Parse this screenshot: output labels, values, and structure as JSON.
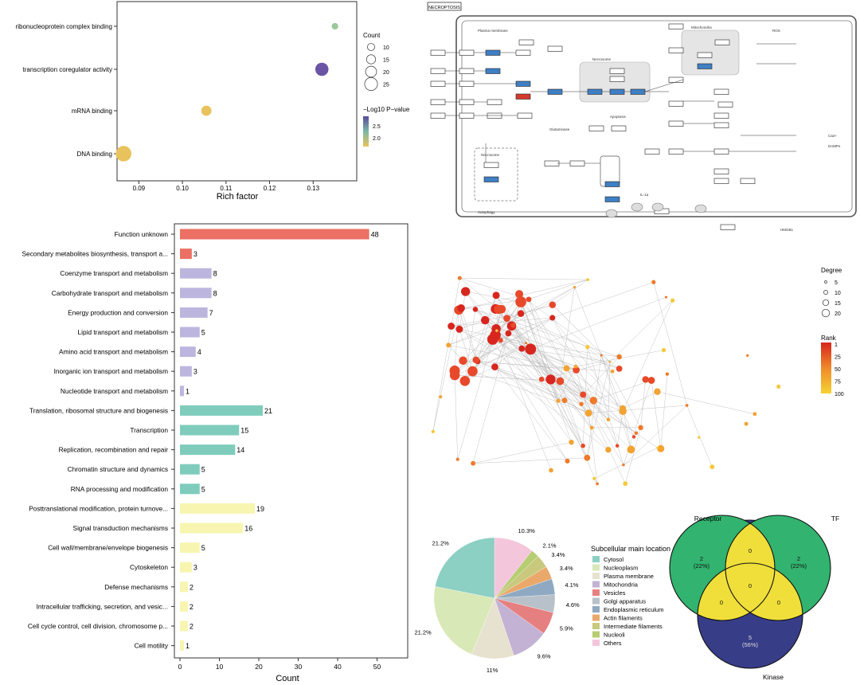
{
  "colors": {
    "red": "#ec7064",
    "lavender": "#bcb6df",
    "teal": "#7fccbd",
    "yellow": "#f8f5b0",
    "venn_green": "#32b36f",
    "venn_yellow": "#f0df3a",
    "venn_navy": "#373d87",
    "kegg_blue": "#3f7fc4",
    "kegg_red": "#d23b2c"
  },
  "dot_plot": {
    "chart_data": {
      "type": "scatter",
      "title": "",
      "xlabel": "Rich factor",
      "ylabel": "",
      "xlim": [
        0.085,
        0.14
      ],
      "xticks": [
        0.09,
        0.1,
        0.11,
        0.12,
        0.13
      ],
      "xtick_labels": [
        "0.09",
        "0.10",
        "0.11",
        "0.12",
        "0.13"
      ],
      "categories": [
        "ribonucleoprotein complex binding",
        "transcription coregulator activity",
        "mRNA binding",
        "DNA binding"
      ],
      "rich_factor": [
        0.135,
        0.132,
        0.1055,
        0.0865
      ],
      "count": [
        5,
        16,
        11,
        20
      ],
      "neg_log10_p": [
        2.3,
        3.0,
        2.0,
        2.0
      ],
      "point_colors": [
        "#99c99a",
        "#6b54a4",
        "#e8c25c",
        "#e8c25c"
      ],
      "legend_count_title": "Count",
      "legend_count_values": [
        "10",
        "15",
        "20",
        "25"
      ],
      "legend_color_title": "−Log10 P−value",
      "legend_color_ticks": [
        "2.5",
        "2.0"
      ]
    }
  },
  "bar_chart": {
    "chart_data": {
      "type": "bar",
      "orientation": "horizontal",
      "xlabel": "Count",
      "xlim": [
        0,
        55
      ],
      "xticks": [
        0,
        10,
        20,
        30,
        40,
        50
      ],
      "xtick_labels": [
        "0",
        "10",
        "20",
        "30",
        "40",
        "50"
      ],
      "categories": [
        "Function unknown",
        "Secondary metabolites biosynthesis, transport a...",
        "Coenzyme transport and metabolism",
        "Carbohydrate transport and metabolism",
        "Energy production and conversion",
        "Lipid transport and metabolism",
        "Amino acid transport and metabolism",
        "Inorganic ion transport and metabolism",
        "Nucleotide transport and metabolism",
        "Translation, ribosomal structure and biogenesis",
        "Transcription",
        "Replication, recombination and repair",
        "Chromatin structure and dynamics",
        "RNA processing and modification",
        "Posttranslational modification, protein turnove...",
        "Signal transduction mechanisms",
        "Cell wall/membrane/envelope biogenesis",
        "Cytoskeleton",
        "Defense mechanisms",
        "Intracellular trafficking, secretion, and vesic...",
        "Cell cycle control, cell division, chromosome p...",
        "Cell motility"
      ],
      "values": [
        48,
        3,
        8,
        8,
        7,
        5,
        4,
        3,
        1,
        21,
        15,
        14,
        5,
        5,
        19,
        16,
        5,
        3,
        2,
        2,
        2,
        1
      ],
      "value_labels": [
        "48",
        "3",
        "8",
        "8",
        "7",
        "5",
        "4",
        "3",
        "1",
        "21",
        "15",
        "14",
        "5",
        "5",
        "19",
        "16",
        "5",
        "3",
        "2",
        "2",
        "2",
        "1"
      ],
      "groups": [
        "red",
        "red",
        "lavender",
        "lavender",
        "lavender",
        "lavender",
        "lavender",
        "lavender",
        "lavender",
        "teal",
        "teal",
        "teal",
        "teal",
        "teal",
        "yellow",
        "yellow",
        "yellow",
        "yellow",
        "yellow",
        "yellow",
        "yellow",
        "yellow"
      ]
    }
  },
  "kegg": {
    "title": "NECROPTOSIS",
    "labels": [
      "TNF",
      "TNFR1",
      "TRADD",
      "RIPK1",
      "RIPK3",
      "MLKL",
      "FADD",
      "CASP8",
      "FASL",
      "FAS",
      "TRAIL",
      "TRAILR",
      "IFN",
      "IFNAR",
      "JAK1",
      "STAT",
      "TLR3",
      "TRIF",
      "ZBP1",
      "Necrosome",
      "Mitochondria",
      "Apoptosis",
      "Cytoplasm",
      "PGAM5",
      "Drp1",
      "ROS",
      "Glutaminase",
      "Lysosome",
      "Ca2+",
      "Ferroptosis",
      "DAMPs",
      "HMGB1",
      "IL-1a",
      "Plasma membrane",
      "Autophagy"
    ],
    "chart_data": {
      "type": "pathway diagram"
    }
  },
  "network": {
    "legend_degree_title": "Degree",
    "legend_degree_values": [
      "5",
      "10",
      "15",
      "20"
    ],
    "legend_rank_title": "Rank",
    "legend_rank_ticks": [
      "1",
      "25",
      "50",
      "75",
      "100"
    ],
    "chart_data": {
      "type": "network",
      "nodes": 100
    }
  },
  "pie": {
    "legend_title": "Subcellular main location",
    "chart_data": {
      "type": "pie",
      "labels": [
        "Cytosol",
        "Nucleoplasm",
        "Plasma membrane",
        "Mitochondria",
        "Vesicles",
        "Golgi apparatus",
        "Endoplasmic reticulum",
        "Actin filaments",
        "Intermediate filaments",
        "Nucleoli",
        "Others"
      ],
      "values": [
        21.2,
        21.2,
        11,
        9.6,
        5.9,
        4.6,
        4.1,
        3.4,
        3.4,
        2.1,
        10.3
      ],
      "value_labels": [
        "21.2%",
        "21.2%",
        "11%",
        "9.6%",
        "5.9%",
        "4.6%",
        "4.1%",
        "3.4%",
        "3.4%",
        "2.1%",
        "10.3%"
      ],
      "colors": [
        "#8ccfc3",
        "#d8e8b6",
        "#e7e2cf",
        "#c3b2d3",
        "#e68080",
        "#b8c1c9",
        "#8fa9c2",
        "#eaa86a",
        "#c8c97c",
        "#b6cd73",
        "#f4c6dc"
      ]
    }
  },
  "venn": {
    "chart_data": {
      "type": "venn",
      "sets": [
        "Receptor",
        "TF",
        "Kinase"
      ],
      "regions": {
        "receptor_only": "2\n(22%)",
        "tf_only": "2\n(22%)",
        "kinase_only": "5\n(56%)",
        "receptor_tf": "0",
        "receptor_kinase": "0",
        "tf_kinase": "0",
        "all": "0"
      }
    }
  }
}
